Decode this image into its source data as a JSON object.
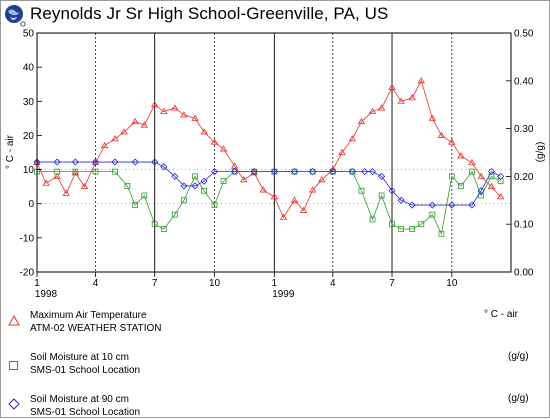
{
  "title": "Reynolds Jr Sr High School-Greenville, PA, US",
  "colors": {
    "temperature": "#e8312d",
    "soil10": "#2e9b2e",
    "soil90": "#2b2bd6",
    "text": "#000000",
    "grid": "#000000"
  },
  "chart_data": {
    "type": "line",
    "left_axis": {
      "label": "° C - air",
      "ylim": [
        -20,
        50
      ],
      "ticks": [
        "-20",
        "-10",
        "0",
        "10",
        "20",
        "30",
        "40",
        "50"
      ]
    },
    "right_axis": {
      "label": "(g/g)",
      "ylim": [
        0.0,
        0.5
      ],
      "ticks": [
        "0.00",
        "0.10",
        "0.20",
        "0.30",
        "0.40",
        "0.50"
      ]
    },
    "xlim": [
      "1998-01-01",
      "1999-12-31"
    ],
    "month_ticks": [
      {
        "date": "1998-01-01",
        "label": "1",
        "year_label": "1998"
      },
      {
        "date": "1998-04-01",
        "label": "4"
      },
      {
        "date": "1998-07-01",
        "label": "7"
      },
      {
        "date": "1998-10-01",
        "label": "10"
      },
      {
        "date": "1999-01-01",
        "label": "1",
        "year_label": "1999"
      },
      {
        "date": "1999-04-01",
        "label": "4"
      },
      {
        "date": "1999-07-01",
        "label": "7"
      },
      {
        "date": "1999-10-01",
        "label": "10"
      }
    ],
    "series": [
      {
        "name": "Maximum Air Temperature",
        "source": "ATM-02 WEATHER STATION",
        "unit": "° C - air",
        "axis": "left",
        "marker": "triangle",
        "color": "#e8312d",
        "dates": [
          "1998-01-01",
          "1998-01-15",
          "1998-02-01",
          "1998-02-15",
          "1998-03-01",
          "1998-03-15",
          "1998-04-01",
          "1998-04-15",
          "1998-05-01",
          "1998-05-15",
          "1998-06-01",
          "1998-06-15",
          "1998-07-01",
          "1998-07-15",
          "1998-08-01",
          "1998-08-15",
          "1998-09-01",
          "1998-09-15",
          "1998-10-01",
          "1998-10-15",
          "1998-11-01",
          "1998-11-15",
          "1998-12-01",
          "1998-12-15",
          "1999-01-01",
          "1999-01-15",
          "1999-02-01",
          "1999-02-15",
          "1999-03-01",
          "1999-03-15",
          "1999-04-01",
          "1999-04-15",
          "1999-05-01",
          "1999-05-15",
          "1999-06-01",
          "1999-06-15",
          "1999-07-01",
          "1999-07-15",
          "1999-08-01",
          "1999-08-15",
          "1999-09-01",
          "1999-09-15",
          "1999-10-01",
          "1999-10-15",
          "1999-11-01",
          "1999-11-15",
          "1999-12-01",
          "1999-12-15"
        ],
        "values": [
          12,
          6,
          8,
          3,
          9,
          5,
          12,
          17,
          19,
          21,
          24,
          23,
          29,
          27,
          28,
          26,
          25,
          21,
          18,
          16,
          11,
          7,
          9,
          4,
          2,
          -4,
          1,
          -2,
          4,
          7,
          10,
          15,
          19,
          24,
          27,
          28,
          34,
          30,
          31,
          36,
          25,
          20,
          18,
          14,
          12,
          8,
          5,
          2
        ]
      },
      {
        "name": "Soil Moisture at 10 cm",
        "source": "SMS-01 School Location",
        "unit": "(g/g)",
        "axis": "right",
        "marker": "square",
        "color": "#2e9b2e",
        "dates": [
          "1998-01-01",
          "1998-02-01",
          "1998-03-01",
          "1998-04-01",
          "1998-05-01",
          "1998-05-20",
          "1998-06-01",
          "1998-06-15",
          "1998-07-01",
          "1998-07-15",
          "1998-08-01",
          "1998-08-15",
          "1998-09-01",
          "1998-09-15",
          "1998-10-01",
          "1998-10-15",
          "1998-11-01",
          "1998-12-01",
          "1999-01-01",
          "1999-02-01",
          "1999-03-01",
          "1999-04-01",
          "1999-05-01",
          "1999-05-15",
          "1999-06-01",
          "1999-06-15",
          "1999-07-01",
          "1999-07-15",
          "1999-08-01",
          "1999-08-15",
          "1999-09-01",
          "1999-09-15",
          "1999-10-01",
          "1999-10-15",
          "1999-11-01",
          "1999-11-15",
          "1999-12-01",
          "1999-12-15"
        ],
        "values": [
          0.21,
          0.21,
          0.21,
          0.21,
          0.21,
          0.18,
          0.14,
          0.16,
          0.1,
          0.09,
          0.12,
          0.15,
          0.2,
          0.17,
          0.14,
          0.19,
          0.21,
          0.21,
          0.21,
          0.21,
          0.21,
          0.21,
          0.21,
          0.17,
          0.11,
          0.16,
          0.1,
          0.09,
          0.09,
          0.1,
          0.12,
          0.08,
          0.2,
          0.18,
          0.21,
          0.16,
          0.2,
          0.19
        ]
      },
      {
        "name": "Soil Moisture at 90 cm",
        "source": "SMS-01 School Location",
        "unit": "(g/g)",
        "axis": "right",
        "marker": "diamond",
        "color": "#2b2bd6",
        "dates": [
          "1998-01-01",
          "1998-02-01",
          "1998-03-01",
          "1998-04-01",
          "1998-05-01",
          "1998-06-01",
          "1998-07-01",
          "1998-07-15",
          "1998-08-01",
          "1998-08-15",
          "1998-09-01",
          "1998-09-15",
          "1998-10-01",
          "1998-11-01",
          "1998-12-01",
          "1999-01-01",
          "1999-02-01",
          "1999-03-01",
          "1999-04-01",
          "1999-05-01",
          "1999-05-20",
          "1999-06-01",
          "1999-06-15",
          "1999-07-01",
          "1999-07-15",
          "1999-08-01",
          "1999-09-01",
          "1999-10-01",
          "1999-11-01",
          "1999-11-15",
          "1999-12-01",
          "1999-12-15"
        ],
        "values": [
          0.23,
          0.23,
          0.23,
          0.23,
          0.23,
          0.23,
          0.23,
          0.22,
          0.2,
          0.18,
          0.18,
          0.19,
          0.21,
          0.21,
          0.21,
          0.21,
          0.21,
          0.21,
          0.21,
          0.21,
          0.21,
          0.21,
          0.2,
          0.17,
          0.15,
          0.14,
          0.14,
          0.14,
          0.14,
          0.17,
          0.21,
          0.2
        ]
      }
    ]
  }
}
